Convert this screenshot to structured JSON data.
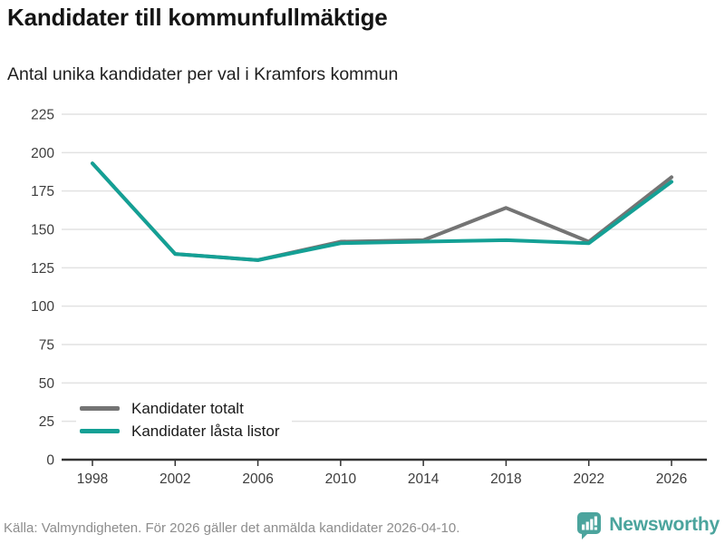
{
  "title": "Kandidater till kommunfullmäktige",
  "subtitle": "Antal unika kandidater per val i Kramfors kommun",
  "footer": {
    "source": "Källa: Valmyndigheten. För 2026 gäller det anmälda kandidater 2026-04-10.",
    "brand": "Newsworthy"
  },
  "colors": {
    "total_line": "#747474",
    "locked_line": "#14a095",
    "brand_teal": "#4ba49d",
    "grid": "#e2e2e2",
    "axis": "#333333",
    "tick_label": "#3d3d3d"
  },
  "chart_data": {
    "type": "line",
    "title": "Kandidater till kommunfullmäktige",
    "subtitle": "Antal unika kandidater per val i Kramfors kommun",
    "categories": [
      "1998",
      "2002",
      "2006",
      "2010",
      "2014",
      "2018",
      "2022",
      "2026"
    ],
    "series": [
      {
        "name": "Kandidater totalt",
        "color": "#747474",
        "values": [
          193,
          134,
          130,
          142,
          143,
          164,
          142,
          184
        ]
      },
      {
        "name": "Kandidater låsta listor",
        "color": "#14a095",
        "values": [
          193,
          134,
          130,
          141,
          142,
          143,
          141,
          181
        ]
      }
    ],
    "xlabel": "",
    "ylabel": "",
    "ylim": [
      0,
      225
    ],
    "yticks": [
      0,
      25,
      50,
      75,
      100,
      125,
      150,
      175,
      200,
      225
    ],
    "grid": true,
    "legend_position": "inside-bottom-left"
  }
}
